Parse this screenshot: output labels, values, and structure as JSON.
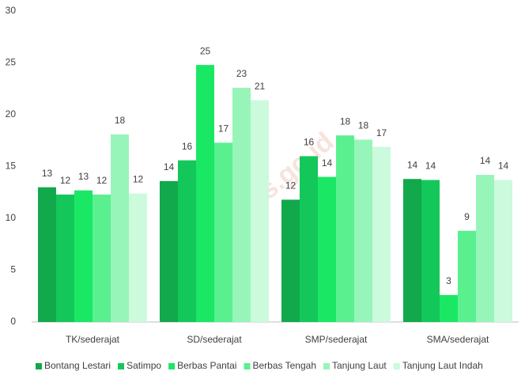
{
  "chart_data": {
    "type": "bar",
    "categories": [
      "TK/sederajat",
      "SD/sederajat",
      "SMP/sederajat",
      "SMA/sederajat"
    ],
    "series": [
      {
        "name": "Bontang Lestari",
        "color": "#12a84c",
        "values": [
          13.0,
          13.6,
          11.8,
          13.8
        ],
        "value_labels": [
          "13",
          "14",
          "12",
          "14"
        ]
      },
      {
        "name": "Satimpo",
        "color": "#14c75a",
        "values": [
          12.3,
          15.6,
          16.0,
          13.7
        ],
        "value_labels": [
          "12",
          "16",
          "16",
          "14"
        ]
      },
      {
        "name": "Berbas Pantai",
        "color": "#1ae864",
        "values": [
          12.7,
          24.8,
          14.0,
          2.6
        ],
        "value_labels": [
          "13",
          "25",
          "14",
          "3"
        ]
      },
      {
        "name": "Berbas Tengah",
        "color": "#5af090",
        "values": [
          12.3,
          17.3,
          18.0,
          8.8
        ],
        "value_labels": [
          "12",
          "17",
          "18",
          "9"
        ]
      },
      {
        "name": "Tanjung Laut",
        "color": "#98f5b9",
        "values": [
          18.1,
          22.6,
          17.6,
          14.2
        ],
        "value_labels": [
          "18",
          "23",
          "18",
          "14"
        ]
      },
      {
        "name": "Tanjung Laut Indah",
        "color": "#cbfadc",
        "values": [
          12.4,
          21.4,
          16.9,
          13.7
        ],
        "value_labels": [
          "12",
          "21",
          "17",
          "14"
        ]
      }
    ],
    "ylim": [
      0,
      30
    ],
    "yticks": [
      0,
      5,
      10,
      15,
      20,
      25,
      30
    ],
    "grid": false,
    "legend": "bottom",
    "watermark": "kota.bps.go.id"
  }
}
